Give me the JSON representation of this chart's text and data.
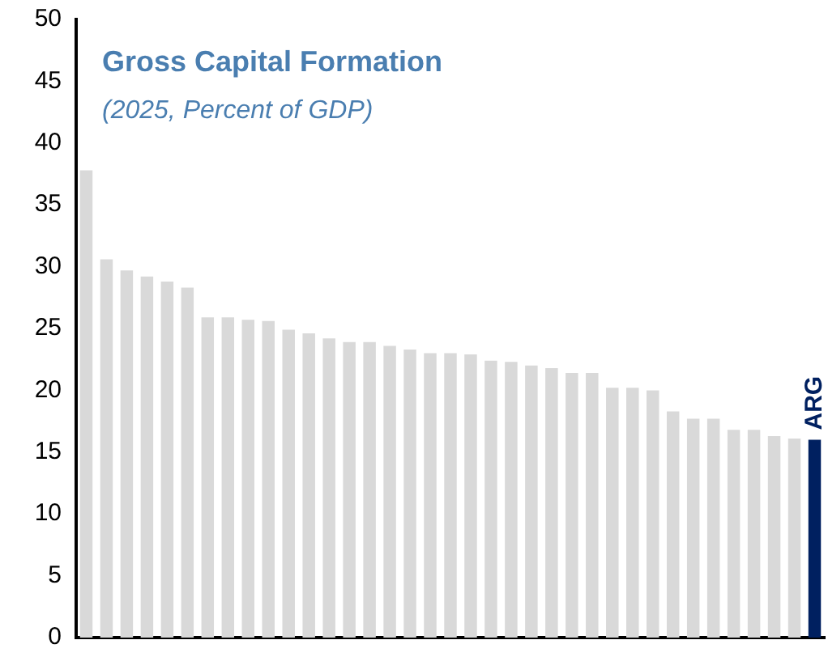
{
  "chart_data": {
    "type": "bar",
    "title": "Gross Capital Formation",
    "subtitle": "(2025, Percent of GDP)",
    "categories": [
      null,
      null,
      null,
      null,
      null,
      null,
      null,
      null,
      null,
      null,
      null,
      null,
      null,
      null,
      null,
      null,
      null,
      null,
      null,
      null,
      null,
      null,
      null,
      null,
      null,
      null,
      null,
      null,
      null,
      null,
      null,
      null,
      null,
      null,
      null,
      null,
      "ARG"
    ],
    "values": [
      37.8,
      30.6,
      29.7,
      29.2,
      28.8,
      28.3,
      25.9,
      25.9,
      25.7,
      25.6,
      24.9,
      24.6,
      24.2,
      23.9,
      23.9,
      23.6,
      23.3,
      23.0,
      23.0,
      22.9,
      22.4,
      22.3,
      22.0,
      21.8,
      21.4,
      21.4,
      20.2,
      20.2,
      20.0,
      18.3,
      17.7,
      17.7,
      16.8,
      16.8,
      16.3,
      16.1,
      16.0
    ],
    "colors": [
      "#d9d9d9",
      "#d9d9d9",
      "#d9d9d9",
      "#d9d9d9",
      "#d9d9d9",
      "#d9d9d9",
      "#d9d9d9",
      "#d9d9d9",
      "#d9d9d9",
      "#d9d9d9",
      "#d9d9d9",
      "#d9d9d9",
      "#d9d9d9",
      "#d9d9d9",
      "#d9d9d9",
      "#d9d9d9",
      "#d9d9d9",
      "#d9d9d9",
      "#d9d9d9",
      "#d9d9d9",
      "#d9d9d9",
      "#d9d9d9",
      "#d9d9d9",
      "#d9d9d9",
      "#d9d9d9",
      "#d9d9d9",
      "#d9d9d9",
      "#d9d9d9",
      "#d9d9d9",
      "#d9d9d9",
      "#d9d9d9",
      "#d9d9d9",
      "#d9d9d9",
      "#d9d9d9",
      "#d9d9d9",
      "#d9d9d9",
      "#002060"
    ],
    "ylim": [
      0,
      50
    ],
    "yticks": [
      0,
      5,
      10,
      15,
      20,
      25,
      30,
      35,
      40,
      45,
      50
    ],
    "grid": false,
    "legend": false
  }
}
